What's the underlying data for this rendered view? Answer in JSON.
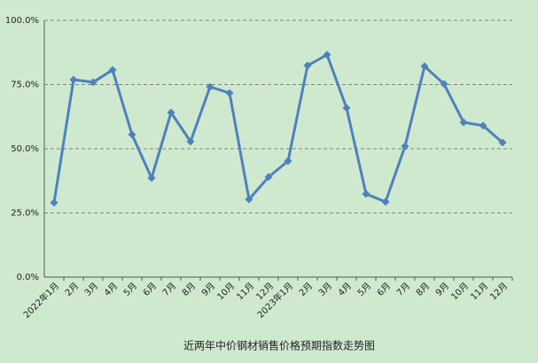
{
  "chart_data": {
    "type": "line",
    "title": "近两年中价钢材销售价格预期指数走势图",
    "categories": [
      "2022年1月",
      "2月",
      "3月",
      "4月",
      "5月",
      "6月",
      "7月",
      "8月",
      "9月",
      "10月",
      "11月",
      "12月",
      "2023年1月",
      "2月",
      "3月",
      "4月",
      "5月",
      "6月",
      "7月",
      "8月",
      "9月",
      "10月",
      "11月",
      "12月"
    ],
    "series": [
      {
        "color": "#4f81bd",
        "values": [
          29.0,
          76.9,
          75.9,
          80.7,
          55.5,
          38.6,
          64.1,
          52.8,
          74.1,
          71.7,
          30.3,
          39.0,
          45.2,
          82.4,
          86.6,
          65.9,
          32.4,
          29.3,
          51.0,
          82.1,
          75.2,
          60.3,
          59.0,
          52.4
        ]
      }
    ],
    "ylim": [
      0,
      100
    ],
    "yticks": [
      {
        "value": 0,
        "label": "0.0%"
      },
      {
        "value": 25,
        "label": "25.0%"
      },
      {
        "value": 50,
        "label": "50.0%"
      },
      {
        "value": 75,
        "label": "75.0%"
      },
      {
        "value": 100,
        "label": "100.0%"
      }
    ],
    "grid": true
  }
}
